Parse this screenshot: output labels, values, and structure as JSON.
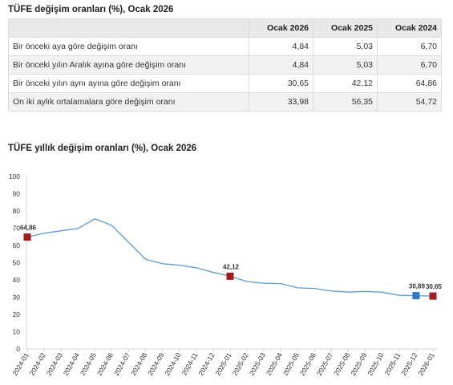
{
  "table": {
    "title": "TÜFE değişim oranları (%), Ocak 2026",
    "columns": [
      "Ocak 2026",
      "Ocak 2025",
      "Ocak 2024"
    ],
    "rows": [
      {
        "label": "Bir önceki aya göre değişim oranı",
        "values": [
          "4,84",
          "5,03",
          "6,70"
        ]
      },
      {
        "label": "Bir önceki yılın Aralık ayına göre değişim oranı",
        "values": [
          "4,84",
          "5,03",
          "6,70"
        ]
      },
      {
        "label": "Bir önceki yılın aynı ayına göre değişim oranı",
        "values": [
          "30,65",
          "42,12",
          "64,86"
        ]
      },
      {
        "label": "On iki aylık ortalamalara göre değişim oranı",
        "values": [
          "33,98",
          "56,35",
          "54,72"
        ]
      }
    ],
    "colors": {
      "header_bg": "#e8e8e8",
      "stripe_bg": "#f2f2f2",
      "border": "#dcdcdc"
    }
  },
  "chart_data": {
    "type": "line",
    "title": "TÜFE yıllık değişim oranları (%), Ocak 2026",
    "categories": [
      "2024-01",
      "2024-02",
      "2024-03",
      "2024-04",
      "2024-05",
      "2024-06",
      "2024-07",
      "2024-08",
      "2024-09",
      "2024-10",
      "2024-11",
      "2024-12",
      "2025-01",
      "2025-02",
      "2025-03",
      "2025-04",
      "2025-05",
      "2025-06",
      "2025-07",
      "2025-08",
      "2025-09",
      "2025-10",
      "2025-11",
      "2025-12",
      "2026-01"
    ],
    "series": [
      {
        "values": [
          64.86,
          67.07,
          68.5,
          69.8,
          75.45,
          71.6,
          61.78,
          51.97,
          49.38,
          48.58,
          47.09,
          44.38,
          42.12,
          39.05,
          38.1,
          37.86,
          35.41,
          35.05,
          33.52,
          32.95,
          33.29,
          32.87,
          31.07,
          30.89,
          30.65
        ],
        "color": "#5a9bd4"
      }
    ],
    "ylim": [
      0,
      100
    ],
    "yticks": [
      0,
      10,
      20,
      30,
      40,
      50,
      60,
      70,
      80,
      90,
      100
    ],
    "grid": false,
    "legend": "none",
    "highlights": [
      {
        "category": "2024-01",
        "value": 64.86,
        "label": "64,86",
        "color": "#a51c1c"
      },
      {
        "category": "2025-01",
        "value": 42.12,
        "label": "42,12",
        "color": "#a51c1c"
      },
      {
        "category": "2025-12",
        "value": 30.89,
        "label": "30,89",
        "color": "#2f78c4"
      },
      {
        "category": "2026-01",
        "value": 30.65,
        "label": "30,65",
        "color": "#a51c1c"
      }
    ]
  }
}
